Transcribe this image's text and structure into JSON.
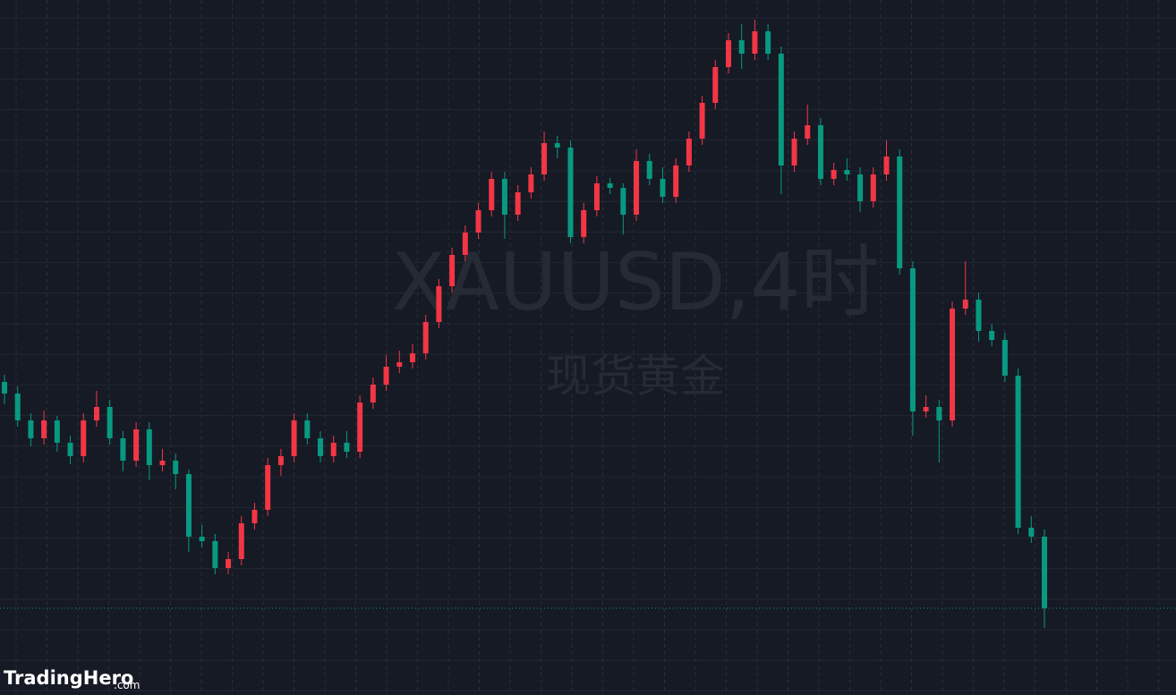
{
  "chart_data": {
    "type": "candlestick",
    "watermark": "XAUUSD,4时",
    "watermark_subtitle": "现货黄金",
    "brand": "TradingHero",
    "brand_suffix": ".com",
    "up_color": "#f23645",
    "down_color": "#089981",
    "ylim": [
      0,
      777
    ],
    "candles": [
      [
        350,
        358,
        325,
        337
      ],
      [
        337,
        345,
        300,
        307
      ],
      [
        307,
        315,
        278,
        287
      ],
      [
        287,
        318,
        280,
        307
      ],
      [
        307,
        312,
        272,
        282
      ],
      [
        282,
        290,
        258,
        267
      ],
      [
        267,
        315,
        260,
        307
      ],
      [
        307,
        340,
        300,
        322
      ],
      [
        322,
        330,
        280,
        287
      ],
      [
        287,
        295,
        250,
        262
      ],
      [
        262,
        305,
        255,
        297
      ],
      [
        297,
        305,
        240,
        257
      ],
      [
        257,
        275,
        250,
        262
      ],
      [
        262,
        270,
        230,
        247
      ],
      [
        247,
        252,
        160,
        177
      ],
      [
        177,
        190,
        165,
        172
      ],
      [
        172,
        180,
        135,
        142
      ],
      [
        142,
        160,
        135,
        152
      ],
      [
        152,
        200,
        145,
        192
      ],
      [
        192,
        215,
        185,
        207
      ],
      [
        207,
        265,
        200,
        257
      ],
      [
        257,
        275,
        245,
        267
      ],
      [
        267,
        315,
        260,
        307
      ],
      [
        307,
        315,
        280,
        287
      ],
      [
        287,
        295,
        260,
        267
      ],
      [
        267,
        290,
        260,
        282
      ],
      [
        282,
        295,
        265,
        272
      ],
      [
        272,
        335,
        265,
        327
      ],
      [
        327,
        355,
        320,
        347
      ],
      [
        347,
        380,
        340,
        367
      ],
      [
        367,
        385,
        360,
        372
      ],
      [
        372,
        392,
        365,
        382
      ],
      [
        382,
        425,
        375,
        417
      ],
      [
        417,
        465,
        410,
        457
      ],
      [
        457,
        500,
        450,
        492
      ],
      [
        492,
        525,
        485,
        517
      ],
      [
        517,
        550,
        510,
        542
      ],
      [
        542,
        585,
        535,
        577
      ],
      [
        577,
        585,
        510,
        537
      ],
      [
        537,
        570,
        530,
        562
      ],
      [
        562,
        590,
        555,
        582
      ],
      [
        582,
        630,
        575,
        617
      ],
      [
        617,
        625,
        600,
        612
      ],
      [
        612,
        620,
        505,
        512
      ],
      [
        512,
        550,
        505,
        542
      ],
      [
        542,
        580,
        535,
        572
      ],
      [
        572,
        578,
        560,
        567
      ],
      [
        567,
        572,
        515,
        537
      ],
      [
        537,
        610,
        530,
        597
      ],
      [
        597,
        605,
        570,
        577
      ],
      [
        577,
        590,
        550,
        557
      ],
      [
        557,
        600,
        550,
        592
      ],
      [
        592,
        630,
        585,
        622
      ],
      [
        622,
        670,
        615,
        662
      ],
      [
        662,
        710,
        655,
        702
      ],
      [
        702,
        740,
        695,
        732
      ],
      [
        732,
        750,
        700,
        717
      ],
      [
        717,
        755,
        710,
        742
      ],
      [
        742,
        750,
        710,
        717
      ],
      [
        717,
        725,
        560,
        592
      ],
      [
        592,
        630,
        585,
        622
      ],
      [
        622,
        660,
        615,
        637
      ],
      [
        637,
        645,
        570,
        577
      ],
      [
        577,
        595,
        570,
        587
      ],
      [
        587,
        600,
        575,
        582
      ],
      [
        582,
        590,
        540,
        552
      ],
      [
        552,
        590,
        545,
        582
      ],
      [
        582,
        620,
        575,
        602
      ],
      [
        602,
        610,
        470,
        477
      ],
      [
        477,
        485,
        290,
        317
      ],
      [
        317,
        335,
        310,
        322
      ],
      [
        322,
        330,
        260,
        307
      ],
      [
        307,
        440,
        300,
        432
      ],
      [
        432,
        485,
        425,
        442
      ],
      [
        442,
        450,
        395,
        407
      ],
      [
        407,
        415,
        390,
        397
      ],
      [
        397,
        405,
        350,
        357
      ],
      [
        357,
        365,
        180,
        187
      ],
      [
        187,
        200,
        170,
        177
      ],
      [
        177,
        185,
        75,
        97
      ]
    ]
  }
}
